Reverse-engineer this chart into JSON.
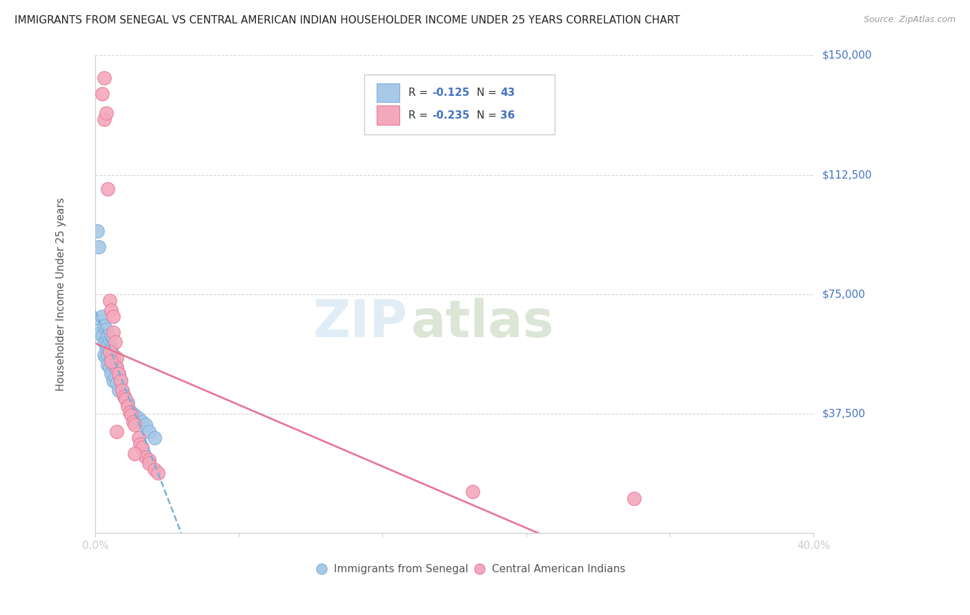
{
  "title": "IMMIGRANTS FROM SENEGAL VS CENTRAL AMERICAN INDIAN HOUSEHOLDER INCOME UNDER 25 YEARS CORRELATION CHART",
  "source": "Source: ZipAtlas.com",
  "ylabel": "Householder Income Under 25 years",
  "xlim": [
    0.0,
    0.4
  ],
  "ylim": [
    0,
    150000
  ],
  "yticks": [
    0,
    37500,
    75000,
    112500,
    150000
  ],
  "ytick_labels": [
    "",
    "$37,500",
    "$75,000",
    "$112,500",
    "$150,000"
  ],
  "xticks": [
    0.0,
    0.08,
    0.16,
    0.24,
    0.32,
    0.4
  ],
  "xtick_labels": [
    "0.0%",
    "",
    "",
    "",
    "",
    "40.0%"
  ],
  "watermark_zip": "ZIP",
  "watermark_atlas": "atlas",
  "legend_r1": "-0.125",
  "legend_n1": "43",
  "legend_r2": "-0.235",
  "legend_n2": "36",
  "color_blue": "#a8c8e8",
  "color_pink": "#f4a8bc",
  "edge_blue": "#7ab0d8",
  "edge_pink": "#e87898",
  "line_blue_color": "#7ab0d8",
  "line_pink_color": "#e87898",
  "grid_color": "#cccccc",
  "blue_x": [
    0.001,
    0.002,
    0.003,
    0.003,
    0.004,
    0.004,
    0.005,
    0.005,
    0.005,
    0.006,
    0.006,
    0.006,
    0.006,
    0.007,
    0.007,
    0.007,
    0.007,
    0.008,
    0.008,
    0.008,
    0.009,
    0.009,
    0.009,
    0.01,
    0.01,
    0.01,
    0.011,
    0.011,
    0.012,
    0.012,
    0.013,
    0.013,
    0.014,
    0.015,
    0.016,
    0.018,
    0.02,
    0.022,
    0.024,
    0.026,
    0.028,
    0.03,
    0.033
  ],
  "blue_y": [
    95000,
    90000,
    67000,
    63000,
    68000,
    62000,
    65000,
    60000,
    56000,
    64000,
    61000,
    58000,
    55000,
    62000,
    59000,
    56000,
    53000,
    61000,
    57000,
    52000,
    58000,
    55000,
    50000,
    56000,
    53000,
    48000,
    54000,
    49000,
    52000,
    47000,
    50000,
    45000,
    48000,
    45000,
    43000,
    41000,
    38000,
    37000,
    36000,
    35000,
    34000,
    32000,
    30000
  ],
  "pink_x": [
    0.004,
    0.005,
    0.005,
    0.006,
    0.007,
    0.008,
    0.009,
    0.01,
    0.01,
    0.011,
    0.012,
    0.012,
    0.013,
    0.014,
    0.015,
    0.016,
    0.017,
    0.018,
    0.019,
    0.02,
    0.021,
    0.022,
    0.024,
    0.025,
    0.026,
    0.028,
    0.03,
    0.03,
    0.033,
    0.035,
    0.008,
    0.009,
    0.022,
    0.21,
    0.3,
    0.012
  ],
  "pink_y": [
    138000,
    143000,
    130000,
    132000,
    108000,
    73000,
    70000,
    68000,
    63000,
    60000,
    55000,
    52000,
    50000,
    48000,
    45000,
    43000,
    42000,
    40000,
    38000,
    37000,
    35000,
    34000,
    30000,
    28000,
    27000,
    24000,
    23000,
    22000,
    20000,
    19000,
    57000,
    54000,
    25000,
    13000,
    11000,
    32000
  ]
}
